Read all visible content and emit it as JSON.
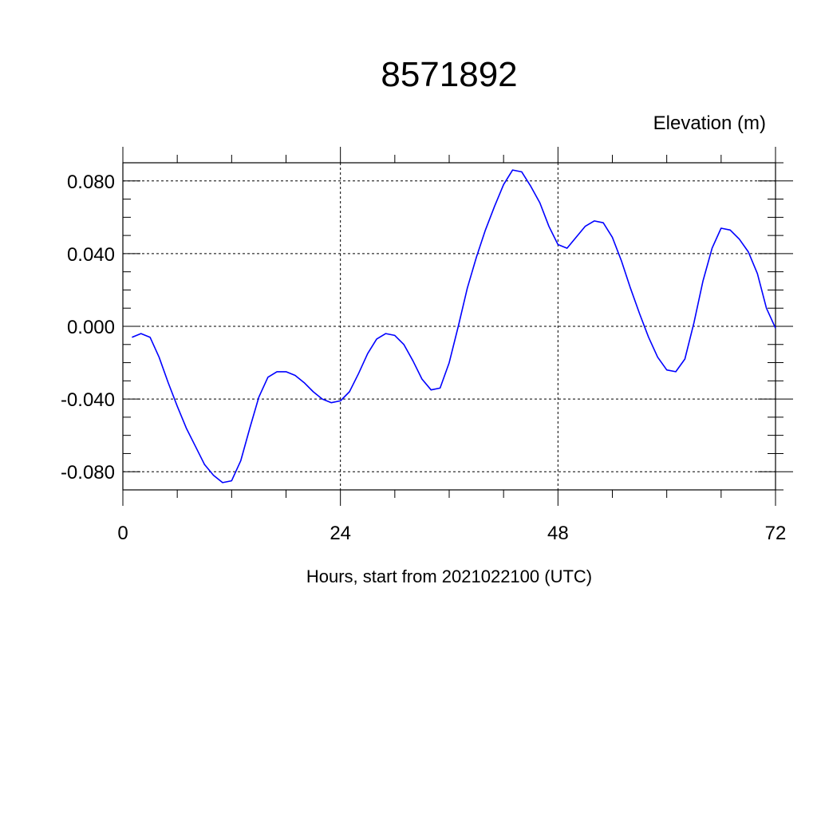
{
  "chart_data": {
    "type": "line",
    "title": "8571892",
    "ylabel": "Elevation (m)",
    "xlabel": "Hours, start from 2021022100 (UTC)",
    "xlim": [
      0,
      72
    ],
    "ylim": [
      -0.09,
      0.09
    ],
    "x_ticks": [
      0,
      24,
      48,
      72
    ],
    "x_tick_labels": [
      "0",
      "24",
      "48",
      "72"
    ],
    "y_ticks": [
      0.08,
      0.04,
      0.0,
      -0.04,
      -0.08
    ],
    "y_tick_labels": [
      "0.080",
      "0.040",
      "0.000",
      "-0.040",
      "-0.080"
    ],
    "grid": true,
    "series": [
      {
        "color": "#0000ff",
        "x": [
          1,
          2,
          3,
          4,
          5,
          6,
          7,
          8,
          9,
          10,
          11,
          12,
          13,
          14,
          15,
          16,
          17,
          18,
          19,
          20,
          21,
          22,
          23,
          24,
          25,
          26,
          27,
          28,
          29,
          30,
          31,
          32,
          33,
          34,
          35,
          36,
          37,
          38,
          39,
          40,
          41,
          42,
          43,
          44,
          45,
          46,
          47,
          48,
          49,
          50,
          51,
          52,
          53,
          54,
          55,
          56,
          57,
          58,
          59,
          60,
          61,
          62,
          63,
          64,
          65,
          66,
          67,
          68,
          69,
          70,
          71,
          72
        ],
        "y": [
          -0.006,
          -0.004,
          -0.006,
          -0.017,
          -0.031,
          -0.044,
          -0.056,
          -0.066,
          -0.076,
          -0.082,
          -0.086,
          -0.085,
          -0.074,
          -0.056,
          -0.039,
          -0.028,
          -0.025,
          -0.025,
          -0.027,
          -0.031,
          -0.036,
          -0.04,
          -0.042,
          -0.041,
          -0.036,
          -0.026,
          -0.015,
          -0.007,
          -0.004,
          -0.005,
          -0.01,
          -0.019,
          -0.029,
          -0.035,
          -0.034,
          -0.02,
          0.0,
          0.021,
          0.038,
          0.053,
          0.066,
          0.078,
          0.086,
          0.085,
          0.077,
          0.068,
          0.055,
          0.045,
          0.043,
          0.049,
          0.055,
          0.058,
          0.057,
          0.049,
          0.036,
          0.021,
          0.007,
          -0.006,
          -0.017,
          -0.024,
          -0.025,
          -0.018,
          0.002,
          0.025,
          0.043,
          0.054,
          0.053,
          0.048,
          0.041,
          0.029,
          0.01,
          -0.001
        ]
      }
    ]
  }
}
